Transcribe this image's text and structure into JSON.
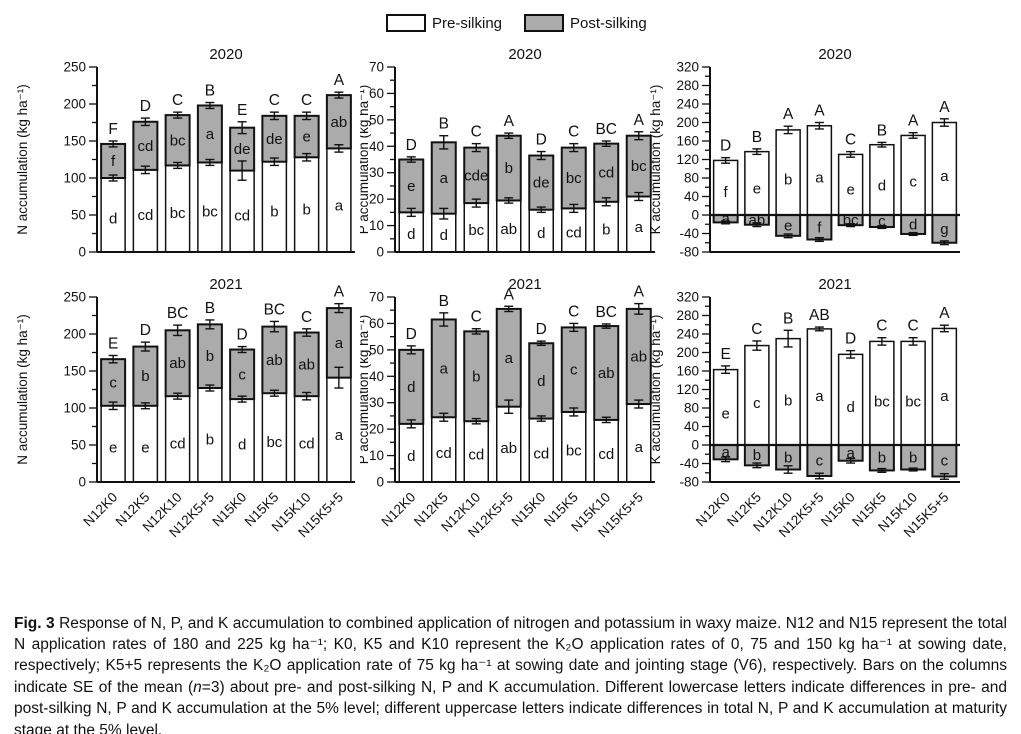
{
  "legend": {
    "items": [
      {
        "label": "Pre-silking",
        "color": "#ffffff"
      },
      {
        "label": "Post-silking",
        "color": "#ababab"
      }
    ]
  },
  "categories": [
    "N12K0",
    "N12K5",
    "N12K10",
    "N12K5+5",
    "N15K0",
    "N15K5",
    "N15K10",
    "N15K5+5"
  ],
  "colors": {
    "pre_fill": "#ffffff",
    "post_fill": "#ababab",
    "axis": "#111111",
    "text": "#111111"
  },
  "caption": {
    "fig_label": "Fig. 3",
    "body_a": " Response of N, P, and K accumulation to combined application of nitrogen and potassium in waxy maize.  N12 and N15 represent the total N application rates of 180 and 225 kg ha⁻¹; K0, K5 and K10 represent the K₂O application rates of 0, 75 and 150 kg ha⁻¹ at sowing date, respectively; K5+5 represents the K₂O application rate of 75 kg ha⁻¹ at sowing date and jointing stage (V6), respectively.  Bars on the columns indicate SE of the mean (",
    "n_italic": "n",
    "body_b": "=3) about pre- and post-silking N, P and K accumulation. Different lowercase letters indicate differences in pre- and post-silking N, P and K accumulation at the 5% level; different uppercase letters indicate differences in total N, P and K accumulation at maturity stage at the 5% level."
  },
  "chart_data": [
    {
      "id": "N-2020",
      "type": "bar",
      "stacked": true,
      "title": "2020",
      "ylabel": "N accumulation (kg ha⁻¹)",
      "ylim": [
        0,
        250
      ],
      "ytick_step": 50,
      "yminor_step": 25,
      "series": [
        {
          "name": "Pre-silking",
          "values": [
            100,
            111,
            117,
            121,
            110,
            122,
            128,
            140
          ],
          "se": [
            4,
            5,
            4,
            4,
            13,
            5,
            5,
            5
          ],
          "letters": [
            "d",
            "cd",
            "bc",
            "bc",
            "cd",
            "b",
            "b",
            "a"
          ]
        },
        {
          "name": "Post-silking",
          "values": [
            46,
            65,
            68,
            77,
            58,
            62,
            56,
            72
          ],
          "se": [
            4,
            5,
            4,
            4,
            8,
            5,
            5,
            4
          ],
          "letters": [
            "f",
            "cd",
            "bc",
            "a",
            "de",
            "de",
            "e",
            "ab"
          ]
        }
      ],
      "total_letters": [
        "F",
        "D",
        "C",
        "B",
        "E",
        "C",
        "C",
        "A"
      ]
    },
    {
      "id": "P-2020",
      "type": "bar",
      "stacked": true,
      "title": "2020",
      "ylabel": "P accumulation (kg ha⁻¹)",
      "ylim": [
        0,
        70
      ],
      "ytick_step": 10,
      "yminor_step": 5,
      "series": [
        {
          "name": "Pre-silking",
          "values": [
            15,
            14.5,
            18.5,
            19.5,
            16,
            16.5,
            19,
            21
          ],
          "se": [
            1.5,
            2,
            1.5,
            1,
            1,
            1.5,
            1.5,
            1.5
          ],
          "letters": [
            "d",
            "d",
            "bc",
            "ab",
            "d",
            "cd",
            "b",
            "a"
          ]
        },
        {
          "name": "Post-silking",
          "values": [
            20,
            27,
            21,
            24.5,
            20.5,
            23,
            22,
            23
          ],
          "se": [
            1,
            2.5,
            1.5,
            1,
            1.5,
            1.5,
            1,
            1.5
          ],
          "letters": [
            "e",
            "a",
            "cde",
            "b",
            "de",
            "bc",
            "cd",
            "bc"
          ]
        }
      ],
      "total_letters": [
        "D",
        "B",
        "C",
        "A",
        "D",
        "C",
        "BC",
        "A"
      ]
    },
    {
      "id": "K-2020",
      "type": "bar",
      "stacked": false,
      "title": "2020",
      "ylabel": "K accumulation (kg ha⁻¹)",
      "ylim": [
        -80,
        320
      ],
      "ytick_step": 40,
      "yminor_step": 20,
      "series": [
        {
          "name": "Pre-silking",
          "values": [
            118,
            137,
            184,
            193,
            131,
            152,
            172,
            200
          ],
          "se": [
            6,
            6,
            8,
            7,
            6,
            5,
            6,
            8
          ],
          "letters": [
            "f",
            "e",
            "b",
            "a",
            "e",
            "d",
            "c",
            "a"
          ]
        },
        {
          "name": "Post-silking",
          "values": [
            -16,
            -21,
            -45,
            -53,
            -22,
            -26,
            -41,
            -60
          ],
          "se": [
            3,
            4,
            4,
            4,
            3,
            3,
            3,
            4
          ],
          "letters": [
            "a",
            "ab",
            "e",
            "f",
            "bc",
            "c",
            "d",
            "g"
          ]
        }
      ],
      "total_letters": [
        "D",
        "B",
        "A",
        "A",
        "C",
        "B",
        "A",
        "A"
      ]
    },
    {
      "id": "N-2021",
      "type": "bar",
      "stacked": true,
      "title": "2021",
      "ylabel": "N accumulation (kg ha⁻¹)",
      "ylim": [
        0,
        250
      ],
      "ytick_step": 50,
      "yminor_step": 25,
      "series": [
        {
          "name": "Pre-silking",
          "values": [
            103,
            103,
            116,
            127,
            112,
            120,
            116,
            141
          ],
          "se": [
            5,
            4,
            4,
            4,
            4,
            4,
            5,
            14
          ],
          "letters": [
            "e",
            "e",
            "cd",
            "b",
            "d",
            "bc",
            "cd",
            "a"
          ]
        },
        {
          "name": "Post-silking",
          "values": [
            63,
            80,
            89,
            86,
            67,
            90,
            86,
            94
          ],
          "se": [
            5,
            6,
            7,
            6,
            4,
            7,
            5,
            6
          ],
          "letters": [
            "c",
            "b",
            "ab",
            "b",
            "c",
            "ab",
            "ab",
            "a"
          ]
        }
      ],
      "total_letters": [
        "E",
        "D",
        "BC",
        "B",
        "D",
        "BC",
        "C",
        "A"
      ]
    },
    {
      "id": "P-2021",
      "type": "bar",
      "stacked": true,
      "title": "2021",
      "ylabel": "P accumulation (kg ha⁻¹)",
      "ylim": [
        0,
        70
      ],
      "ytick_step": 10,
      "yminor_step": 5,
      "series": [
        {
          "name": "Pre-silking",
          "values": [
            22,
            24.5,
            23,
            28.5,
            24,
            26.5,
            23.5,
            29.5
          ],
          "se": [
            1.5,
            1.5,
            1,
            2.5,
            1,
            1.5,
            1,
            1.5
          ],
          "letters": [
            "d",
            "cd",
            "cd",
            "ab",
            "cd",
            "bc",
            "cd",
            "a"
          ]
        },
        {
          "name": "Post-silking",
          "values": [
            28,
            37,
            34,
            37,
            28.5,
            32,
            35.5,
            36
          ],
          "se": [
            1.5,
            2.5,
            1,
            1,
            0.8,
            1.5,
            0.8,
            2
          ],
          "letters": [
            "d",
            "a",
            "b",
            "a",
            "d",
            "c",
            "ab",
            "ab"
          ]
        }
      ],
      "total_letters": [
        "D",
        "B",
        "C",
        "A",
        "D",
        "C",
        "BC",
        "A"
      ]
    },
    {
      "id": "K-2021",
      "type": "bar",
      "stacked": false,
      "title": "2021",
      "ylabel": "K accumulation (kg ha⁻¹)",
      "ylim": [
        -80,
        320
      ],
      "ytick_step": 40,
      "yminor_step": 20,
      "series": [
        {
          "name": "Pre-silking",
          "values": [
            163,
            215,
            230,
            251,
            196,
            224,
            224,
            252
          ],
          "se": [
            8,
            10,
            18,
            4,
            8,
            8,
            8,
            7
          ],
          "letters": [
            "e",
            "c",
            "b",
            "a",
            "d",
            "bc",
            "bc",
            "a"
          ]
        },
        {
          "name": "Post-silking",
          "values": [
            -31,
            -44,
            -53,
            -67,
            -34,
            -55,
            -53,
            -68
          ],
          "se": [
            5,
            5,
            8,
            6,
            5,
            4,
            3,
            6
          ],
          "letters": [
            "a",
            "b",
            "b",
            "c",
            "a",
            "b",
            "b",
            "c"
          ]
        }
      ],
      "total_letters": [
        "E",
        "C",
        "B",
        "AB",
        "D",
        "C",
        "C",
        "A"
      ]
    }
  ]
}
